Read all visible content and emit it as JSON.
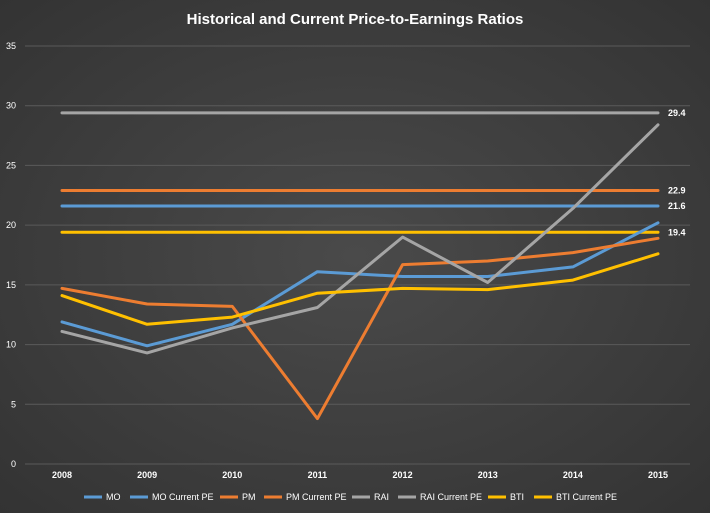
{
  "chart_data": {
    "type": "line",
    "title": "Historical and Current Price-to-Earnings Ratios",
    "xlabel": "",
    "ylabel": "",
    "categories": [
      "2008",
      "2009",
      "2010",
      "2011",
      "2012",
      "2013",
      "2014",
      "2015"
    ],
    "ylim": [
      0,
      35
    ],
    "yticks": [
      0,
      5,
      10,
      15,
      20,
      25,
      30,
      35
    ],
    "grid": true,
    "legend_position": "bottom",
    "series": [
      {
        "name": "MO",
        "color": "#5b9bd5",
        "values": [
          11.9,
          9.9,
          11.7,
          16.1,
          15.7,
          15.7,
          16.5,
          20.2
        ]
      },
      {
        "name": "MO Current PE",
        "color": "#5b9bd5",
        "values": [
          21.6,
          21.6,
          21.6,
          21.6,
          21.6,
          21.6,
          21.6,
          21.6
        ],
        "label": "21.6"
      },
      {
        "name": "PM",
        "color": "#ed7d31",
        "values": [
          14.7,
          13.4,
          13.2,
          3.8,
          16.7,
          17.0,
          17.7,
          18.9
        ]
      },
      {
        "name": "PM Current PE",
        "color": "#ed7d31",
        "values": [
          22.9,
          22.9,
          22.9,
          22.9,
          22.9,
          22.9,
          22.9,
          22.9
        ],
        "label": "22.9"
      },
      {
        "name": "RAI",
        "color": "#a5a5a5",
        "values": [
          11.1,
          9.3,
          11.4,
          13.1,
          19.0,
          15.2,
          21.4,
          28.4
        ]
      },
      {
        "name": "RAI Current PE",
        "color": "#a5a5a5",
        "values": [
          29.4,
          29.4,
          29.4,
          29.4,
          29.4,
          29.4,
          29.4,
          29.4
        ],
        "label": "29.4"
      },
      {
        "name": "BTI",
        "color": "#ffc000",
        "values": [
          14.1,
          11.7,
          12.3,
          14.3,
          14.7,
          14.6,
          15.4,
          17.6
        ]
      },
      {
        "name": "BTI Current PE",
        "color": "#ffc000",
        "values": [
          19.4,
          19.4,
          19.4,
          19.4,
          19.4,
          19.4,
          19.4,
          19.4
        ],
        "label": "19.4"
      }
    ]
  }
}
